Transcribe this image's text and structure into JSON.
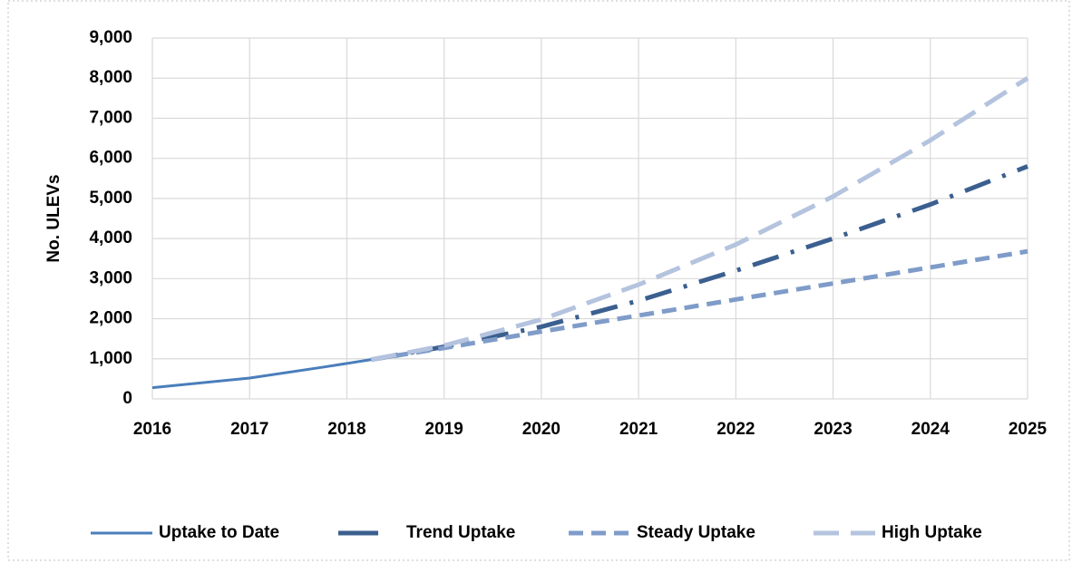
{
  "chart_data": {
    "type": "line",
    "y_label": "No. ULEVs",
    "xlim": [
      2016,
      2025
    ],
    "xticks": [
      2016,
      2017,
      2018,
      2019,
      2020,
      2021,
      2022,
      2023,
      2024,
      2025
    ],
    "ylim": [
      0,
      9000
    ],
    "yticks": [
      0,
      {
        "value": 1000,
        "label": "1,000"
      },
      {
        "value": 2000,
        "label": "2,000"
      },
      {
        "value": 3000,
        "label": "3,000"
      },
      {
        "value": 4000,
        "label": "4,000"
      },
      {
        "value": 5000,
        "label": "5,000"
      },
      {
        "value": 6000,
        "label": "6,000"
      },
      {
        "value": 7000,
        "label": "7,000"
      },
      {
        "value": 8000,
        "label": "8,000"
      },
      {
        "value": 9000,
        "label": "9,000"
      }
    ],
    "grid": true,
    "legend": "bottom",
    "series": [
      {
        "name": "Uptake to Date",
        "color": "#4a7ebb",
        "style": "solid",
        "x": [
          2016,
          2017,
          2017.75,
          2018.25
        ],
        "values": [
          280,
          520,
          790,
          980
        ]
      },
      {
        "name": "Trend Uptake",
        "color": "#3b5f8f",
        "style": "dashdot",
        "x": [
          2018.25,
          2019,
          2020,
          2021,
          2022,
          2023,
          2024,
          2025
        ],
        "values": [
          980,
          1300,
          1800,
          2450,
          3200,
          4000,
          4850,
          5800
        ]
      },
      {
        "name": "Steady Uptake",
        "color": "#7f9cc9",
        "style": "dash",
        "x": [
          2018.25,
          2019,
          2020,
          2021,
          2022,
          2023,
          2024,
          2025
        ],
        "values": [
          980,
          1270,
          1680,
          2080,
          2480,
          2880,
          3280,
          3680
        ]
      },
      {
        "name": "High Uptake",
        "color": "#b4c3de",
        "style": "longdash",
        "x": [
          2018.25,
          2019,
          2020,
          2021,
          2022,
          2023,
          2024,
          2025
        ],
        "values": [
          980,
          1330,
          1980,
          2850,
          3850,
          5050,
          6450,
          8000
        ]
      }
    ]
  }
}
